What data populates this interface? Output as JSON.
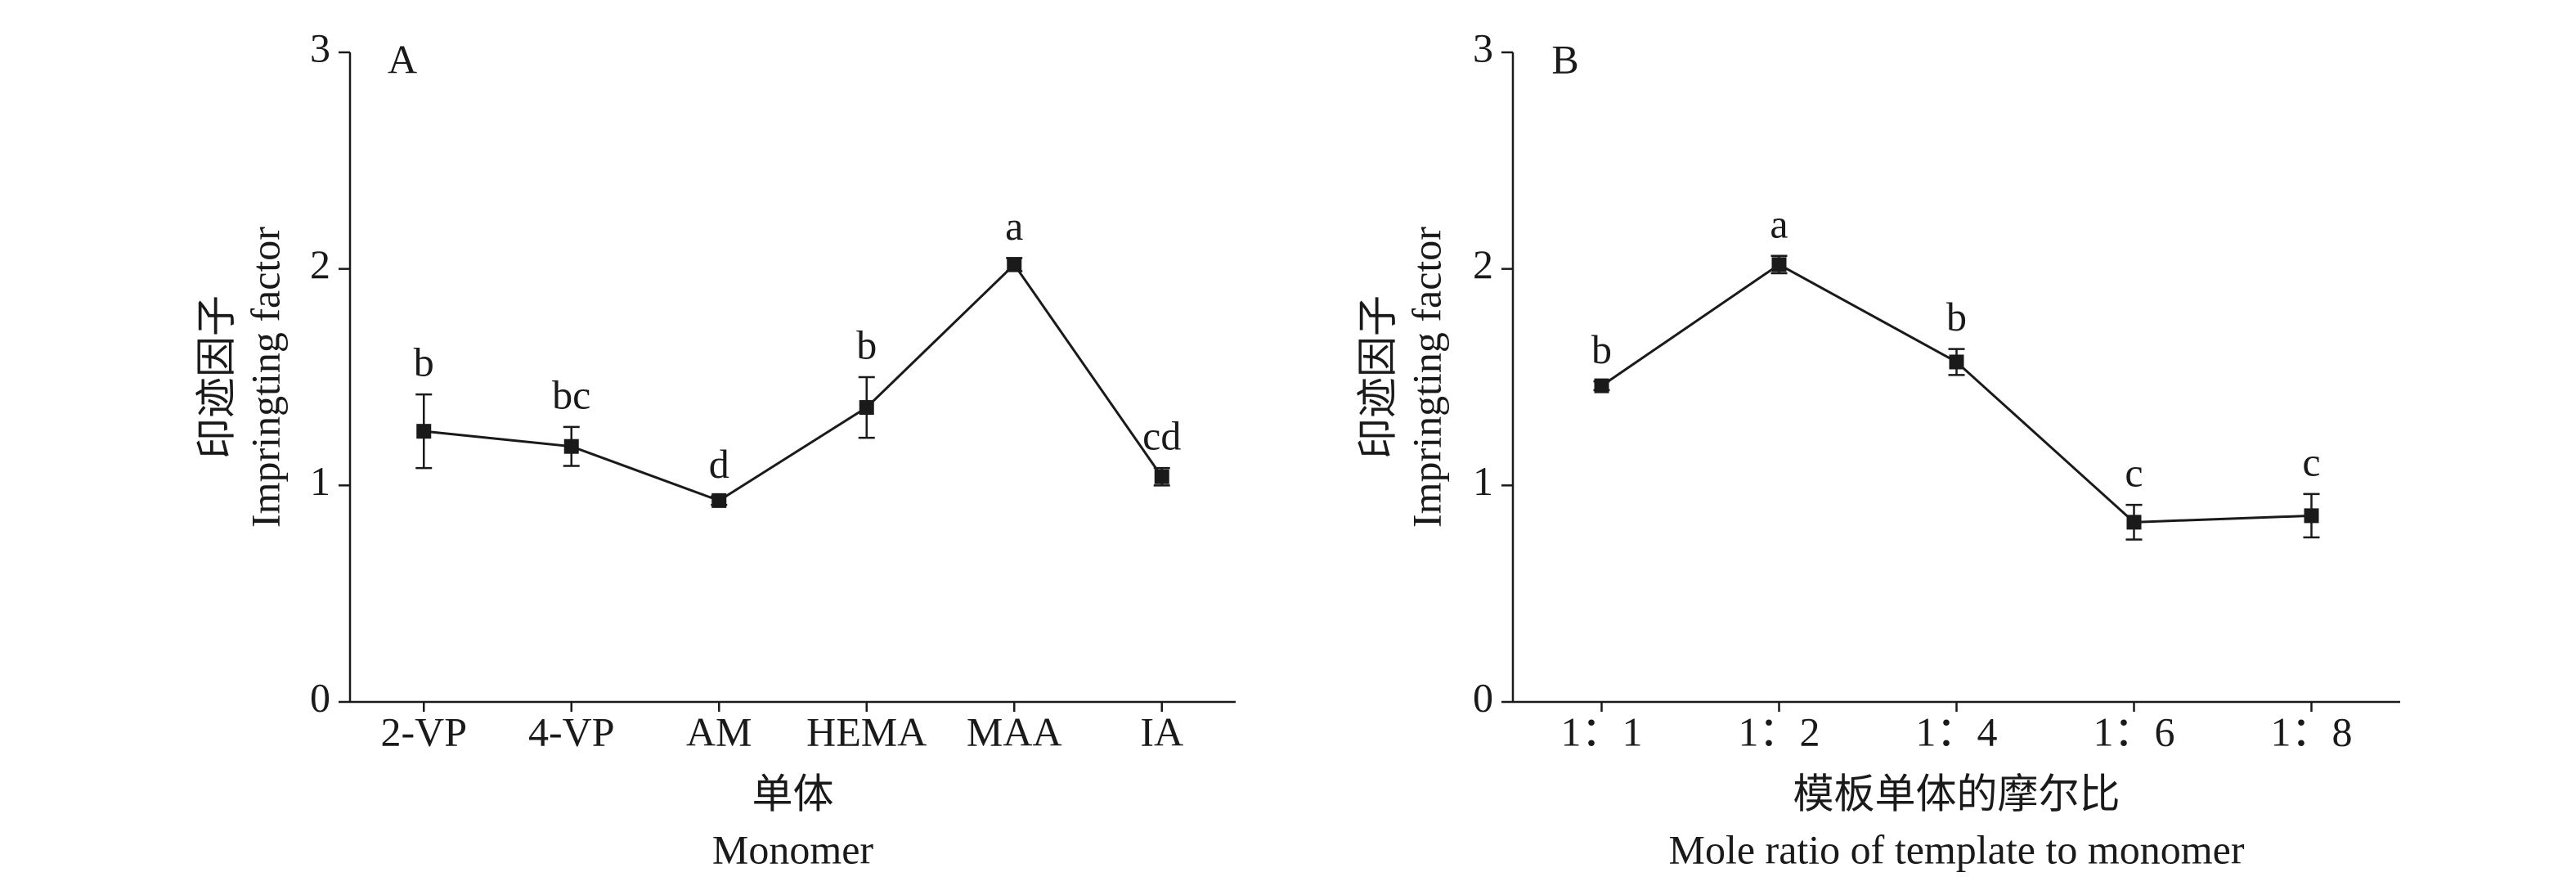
{
  "chart_data": [
    {
      "type": "line",
      "panel": "A",
      "ylabel": "印迹因子",
      "ylabel_en": "Impringting factor",
      "xlabel": "单体",
      "xlabel_en": "Monomer",
      "categories": [
        "2-VP",
        "4-VP",
        "AM",
        "HEMA",
        "MAA",
        "IA"
      ],
      "values": [
        1.25,
        1.18,
        0.93,
        1.36,
        2.02,
        1.04
      ],
      "errors": [
        0.17,
        0.09,
        0.02,
        0.14,
        0.03,
        0.04
      ],
      "annotations": [
        "b",
        "bc",
        "d",
        "b",
        "a",
        "cd"
      ],
      "color": "#1a1a1a",
      "ylim": [
        0,
        3
      ],
      "yticks": [
        0,
        1,
        2,
        3
      ]
    },
    {
      "type": "line",
      "panel": "B",
      "ylabel": "印迹因子",
      "ylabel_en": "Impringting factor",
      "xlabel": "模板单体的摩尔比",
      "xlabel_en": "Mole ratio of template to monomer",
      "categories": [
        "1：1",
        "1：2",
        "1：4",
        "1：6",
        "1：8"
      ],
      "values": [
        1.46,
        2.02,
        1.57,
        0.83,
        0.86
      ],
      "errors": [
        0.02,
        0.04,
        0.06,
        0.08,
        0.1
      ],
      "annotations": [
        "b",
        "a",
        "b",
        "c",
        "c"
      ],
      "color": "#1a1a1a",
      "ylim": [
        0,
        3
      ],
      "yticks": [
        0,
        1,
        2,
        3
      ]
    }
  ]
}
